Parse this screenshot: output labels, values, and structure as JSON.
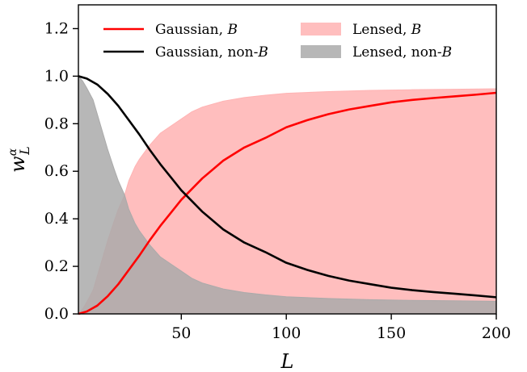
{
  "chart_data": {
    "type": "area",
    "xlabel": "L",
    "ylabel": "w",
    "ylabel_sup": "α",
    "ylabel_sub": "L",
    "xlim": [
      1,
      200
    ],
    "ylim": [
      0,
      1.3
    ],
    "xticks": [
      50,
      100,
      150,
      200
    ],
    "yticks": [
      0.0,
      0.2,
      0.4,
      0.6,
      0.8,
      1.0,
      1.2
    ],
    "xtick_labels": [
      "50",
      "100",
      "150",
      "200"
    ],
    "ytick_labels": [
      "0.0",
      "0.2",
      "0.4",
      "0.6",
      "0.8",
      "1.0",
      "1.2"
    ],
    "grid": false,
    "legend_placement": "top",
    "series": [
      {
        "name": "Gaussian, B",
        "label_main": "Gaussian, ",
        "label_italic": "B",
        "label_tail": "",
        "kind": "line",
        "color": "#ff0000",
        "x": [
          1,
          5,
          10,
          15,
          20,
          25,
          30,
          35,
          40,
          45,
          50,
          55,
          60,
          70,
          80,
          90,
          100,
          110,
          120,
          130,
          140,
          150,
          160,
          170,
          180,
          190,
          200
        ],
        "y": [
          0.0,
          0.01,
          0.035,
          0.075,
          0.125,
          0.185,
          0.245,
          0.31,
          0.37,
          0.425,
          0.48,
          0.525,
          0.57,
          0.645,
          0.7,
          0.74,
          0.785,
          0.815,
          0.84,
          0.86,
          0.875,
          0.89,
          0.9,
          0.908,
          0.915,
          0.922,
          0.93
        ]
      },
      {
        "name": "Gaussian, non-B",
        "label_main": "Gaussian, non-",
        "label_italic": "B",
        "label_tail": "",
        "kind": "line",
        "color": "#000000",
        "x": [
          1,
          5,
          10,
          15,
          20,
          25,
          30,
          35,
          40,
          45,
          50,
          55,
          60,
          70,
          80,
          90,
          100,
          110,
          120,
          130,
          140,
          150,
          160,
          170,
          180,
          190,
          200
        ],
        "y": [
          1.0,
          0.99,
          0.965,
          0.925,
          0.875,
          0.815,
          0.755,
          0.69,
          0.63,
          0.575,
          0.52,
          0.475,
          0.43,
          0.355,
          0.3,
          0.26,
          0.215,
          0.185,
          0.16,
          0.14,
          0.125,
          0.11,
          0.1,
          0.092,
          0.085,
          0.078,
          0.07
        ]
      },
      {
        "name": "Lensed, B",
        "label_main": "Lensed, ",
        "label_italic": "B",
        "label_tail": "",
        "kind": "area",
        "color": "#ff0000",
        "fill": "#ffb3b3",
        "x": [
          1,
          3,
          5,
          8,
          10,
          13,
          15,
          18,
          20,
          23,
          25,
          28,
          30,
          35,
          40,
          45,
          50,
          55,
          60,
          70,
          80,
          90,
          100,
          120,
          140,
          160,
          180,
          200
        ],
        "y": [
          0.0,
          0.02,
          0.05,
          0.1,
          0.16,
          0.25,
          0.31,
          0.39,
          0.44,
          0.5,
          0.56,
          0.62,
          0.65,
          0.71,
          0.76,
          0.79,
          0.82,
          0.85,
          0.87,
          0.895,
          0.91,
          0.92,
          0.928,
          0.935,
          0.94,
          0.943,
          0.945,
          0.947
        ]
      },
      {
        "name": "Lensed, non-B",
        "label_main": "Lensed, non-",
        "label_italic": "B",
        "label_tail": "",
        "kind": "area",
        "color": "#808080",
        "fill": "#aaaaaa",
        "x": [
          1,
          3,
          5,
          8,
          10,
          13,
          15,
          18,
          20,
          23,
          25,
          28,
          30,
          35,
          40,
          45,
          50,
          55,
          60,
          70,
          80,
          90,
          100,
          120,
          140,
          160,
          180,
          200
        ],
        "y": [
          1.0,
          0.98,
          0.95,
          0.9,
          0.84,
          0.75,
          0.69,
          0.61,
          0.56,
          0.5,
          0.44,
          0.38,
          0.35,
          0.29,
          0.24,
          0.21,
          0.18,
          0.15,
          0.13,
          0.105,
          0.09,
          0.08,
          0.072,
          0.065,
          0.06,
          0.057,
          0.055,
          0.053
        ]
      }
    ]
  }
}
